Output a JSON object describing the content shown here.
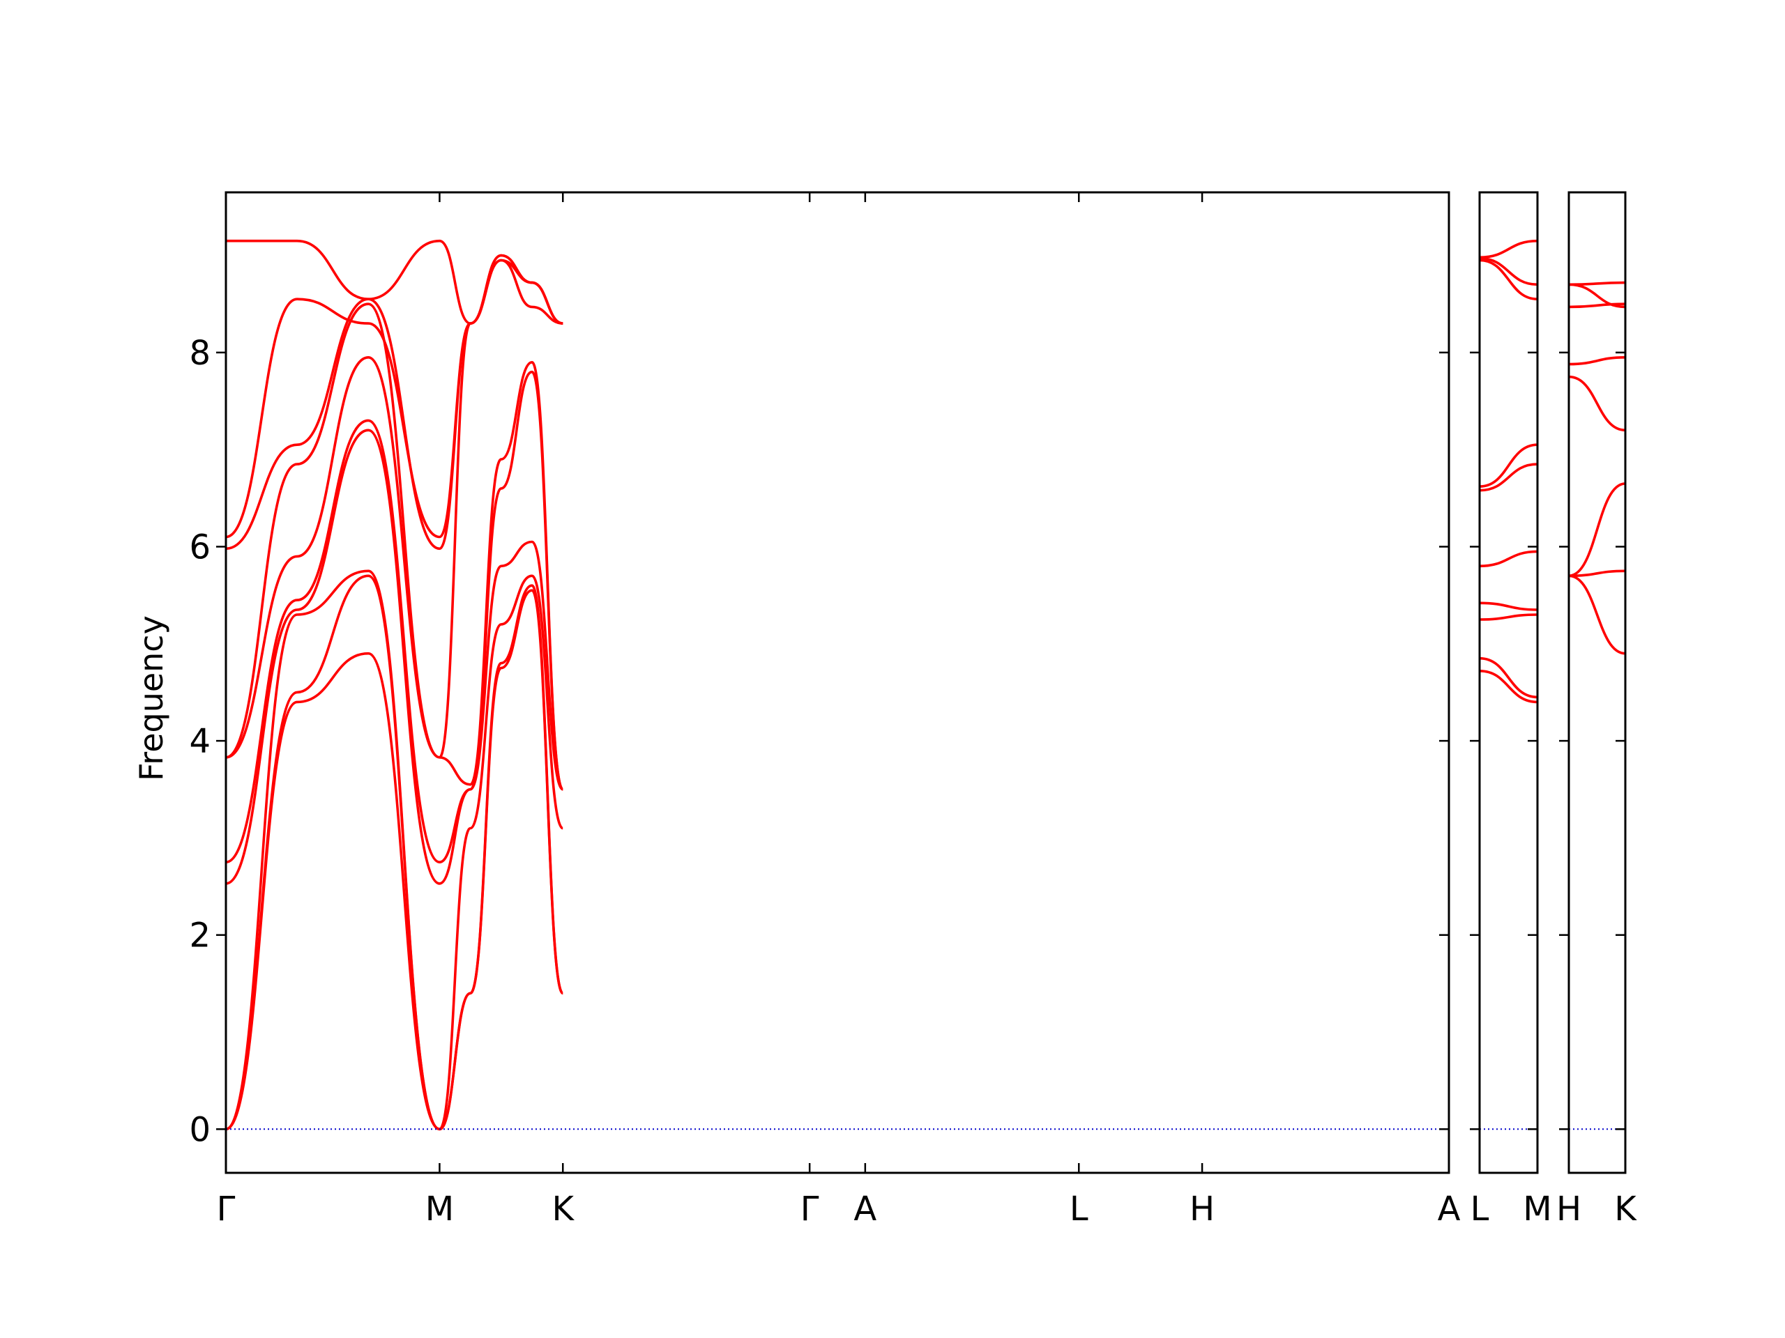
{
  "chart_data": {
    "type": "line",
    "ylabel": "Frequency",
    "ylim": [
      -0.45,
      9.65
    ],
    "yticks": [
      0,
      2,
      4,
      6,
      8
    ],
    "ytick_labels": [
      "0",
      "2",
      "4",
      "6",
      "8"
    ],
    "line_color": "#ff0000",
    "zero_line_color": "#0000cc",
    "grid": false,
    "legend": "none",
    "panels": [
      {
        "segments": [
          {
            "from": "Γ",
            "to": "M",
            "length": 1.0
          },
          {
            "from": "M",
            "to": "K",
            "length": 0.577
          },
          {
            "from": "K",
            "to": "Γ",
            "length": 1.155
          },
          {
            "from": "Γ",
            "to": "A",
            "length": 0.26
          },
          {
            "from": "A",
            "to": "L",
            "length": 1.0
          },
          {
            "from": "L",
            "to": "H",
            "length": 0.577
          },
          {
            "from": "H",
            "to": "A",
            "length": 1.155
          }
        ],
        "tick_labels": [
          "Γ",
          "M",
          "K",
          "Γ",
          "A",
          "L",
          "H",
          "A"
        ],
        "branch_values": [
          [
            [
              0,
              4.4,
              4.9,
              0
            ],
            [
              0,
              1.4,
              4.75,
              5.55,
              1.4
            ]
          ],
          [
            [
              0,
              4.5,
              5.7,
              0
            ],
            [
              0,
              1.4,
              4.8,
              5.6,
              1.4
            ]
          ],
          [
            [
              0,
              5.3,
              5.75,
              0
            ],
            [
              2.53,
              3.1,
              5.2,
              5.7,
              3.1
            ]
          ],
          [
            [
              2.53,
              5.35,
              7.2,
              2.53
            ],
            [
              2.75,
              3.5,
              5.8,
              6.05,
              3.5
            ]
          ],
          [
            [
              2.75,
              5.45,
              7.3,
              2.75
            ],
            [
              3.55,
              3.5,
              6.6,
              7.8,
              3.5
            ]
          ],
          [
            [
              3.83,
              5.9,
              7.95,
              3.83
            ],
            [
              3.83,
              3.55,
              6.9,
              7.9,
              3.5
            ]
          ],
          [
            [
              3.83,
              6.85,
              8.5,
              3.83
            ],
            [
              5.98,
              8.3,
              8.95,
              8.47,
              8.3
            ]
          ],
          [
            [
              5.98,
              7.05,
              8.55,
              5.98
            ],
            [
              6.1,
              8.3,
              8.95,
              8.72,
              8.3
            ]
          ],
          [
            [
              6.1,
              8.55,
              8.3,
              6.1
            ],
            [
              9.15,
              8.3,
              9.0,
              8.72,
              8.3
            ]
          ],
          [
            [
              9.15,
              9.15,
              8.55,
              9.15
            ],
            [
              9.15,
              8.3,
              9.0,
              8.72,
              8.3
            ]
          ]
        ]
      },
      {
        "segments": [
          {
            "from": "L",
            "to": "M",
            "length": 0.26
          }
        ],
        "tick_labels": [
          "L",
          "M"
        ],
        "branch_values": [
          [
            [
              4.72,
              4.4
            ]
          ],
          [
            [
              4.85,
              4.45
            ]
          ],
          [
            [
              5.25,
              5.3
            ]
          ],
          [
            [
              5.42,
              5.35
            ]
          ],
          [
            [
              5.8,
              5.95
            ]
          ],
          [
            [
              6.58,
              6.85
            ]
          ],
          [
            [
              6.62,
              7.05
            ]
          ],
          [
            [
              8.95,
              8.55
            ]
          ],
          [
            [
              8.97,
              8.7
            ]
          ],
          [
            [
              8.98,
              9.15
            ]
          ]
        ]
      },
      {
        "segments": [
          {
            "from": "H",
            "to": "K",
            "length": 0.26
          }
        ],
        "tick_labels": [
          "H",
          "K"
        ],
        "branch_values": [
          [
            [
              5.7,
              4.9
            ]
          ],
          [
            [
              5.7,
              5.75
            ]
          ],
          [
            [
              5.7,
              6.65
            ]
          ],
          [
            [
              7.75,
              7.2
            ]
          ],
          [
            [
              7.88,
              7.95
            ]
          ],
          [
            [
              8.47,
              8.5
            ]
          ],
          [
            [
              8.7,
              8.72
            ]
          ],
          [
            [
              8.7,
              8.47
            ]
          ]
        ]
      }
    ]
  }
}
